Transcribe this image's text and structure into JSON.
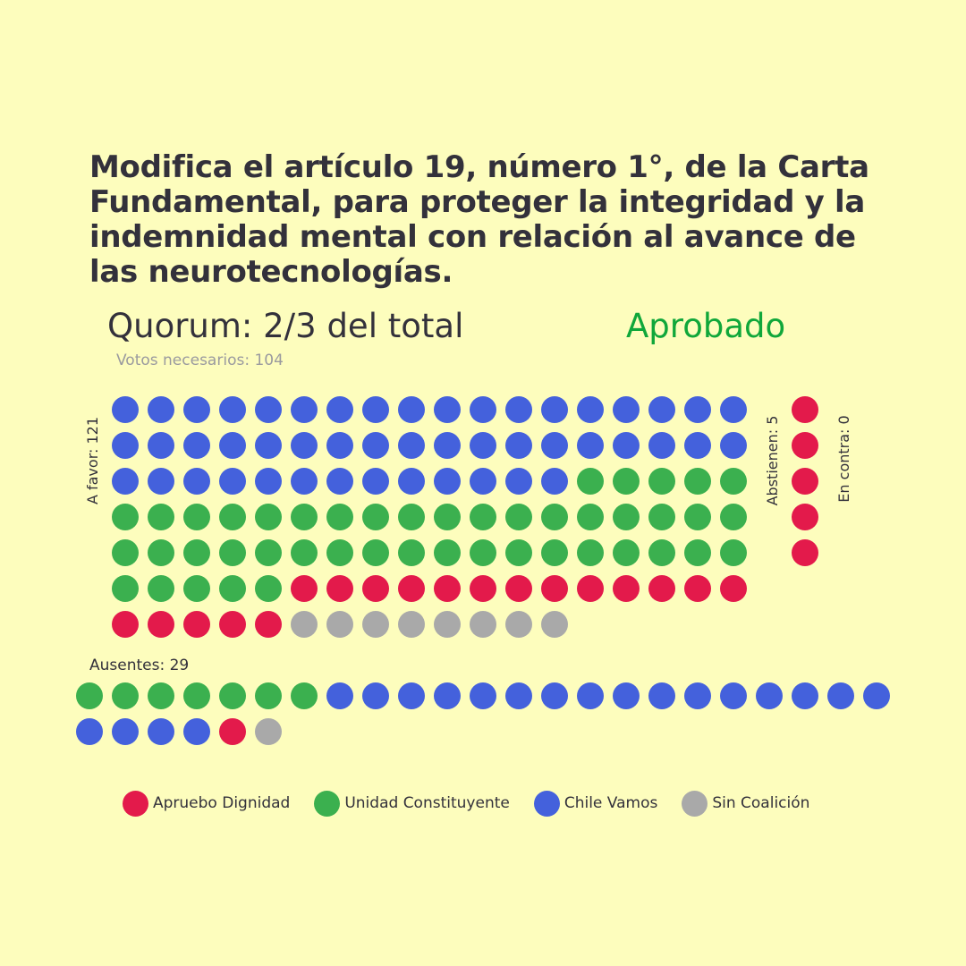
{
  "title": "Modifica el artículo 19, número 1°, de la Carta Fundamental, para proteger la integridad y la indemnidad mental con relación al avance de las neurotecnologías.",
  "quorum": "Quorum: 2/3 del total",
  "status": "Aprobado",
  "votes_needed_label": "Votos necesarios: 104",
  "labels": {
    "favor": "A favor: 121",
    "abstain": "Abstienen: 5",
    "against": "En contra: 0",
    "absent": "Ausentes: 29"
  },
  "colors": {
    "Apruebo Dignidad": "#e31a4b",
    "Unidad Constituyente": "#3bb04f",
    "Chile Vamos": "#4461dc",
    "Sin Coalición": "#a9a9a9"
  },
  "chart_data": {
    "type": "waffle",
    "totals": {
      "A favor": 121,
      "Abstienen": 5,
      "En contra": 0,
      "Ausentes": 29
    },
    "groups": [
      {
        "name": "A favor",
        "counts": {
          "Chile Vamos": 49,
          "Unidad Constituyente": 46,
          "Apruebo Dignidad": 18,
          "Sin Coalición": 8
        }
      },
      {
        "name": "Abstienen",
        "counts": {
          "Chile Vamos": 0,
          "Unidad Constituyente": 0,
          "Apruebo Dignidad": 5,
          "Sin Coalición": 0
        }
      },
      {
        "name": "En contra",
        "counts": {
          "Chile Vamos": 0,
          "Unidad Constituyente": 0,
          "Apruebo Dignidad": 0,
          "Sin Coalición": 0
        }
      },
      {
        "name": "Ausentes",
        "counts": {
          "Unidad Constituyente": 7,
          "Chile Vamos": 20,
          "Apruebo Dignidad": 1,
          "Sin Coalición": 1
        }
      }
    ],
    "legend": [
      "Apruebo Dignidad",
      "Unidad Constituyente",
      "Chile Vamos",
      "Sin Coalición"
    ]
  }
}
